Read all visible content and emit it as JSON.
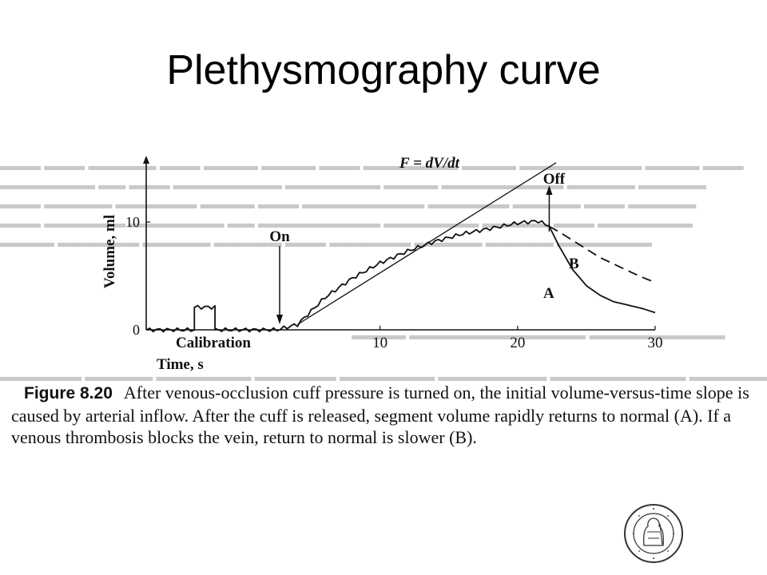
{
  "slide": {
    "title": "Plethysmography curve"
  },
  "figure": {
    "label": "Figure 8.20",
    "caption": "After venous-occlusion cuff pressure is turned on, the initial volume-versus-time slope is caused by arterial inflow. After the cuff is released, segment volume rapidly returns to normal (A). If a venous thrombosis blocks the vein, return to normal is slower (B).",
    "annotations": {
      "slope": "F = dV/dt",
      "on": "On",
      "off": "Off",
      "curve_a": "A",
      "curve_b": "B",
      "calibration": "Calibration"
    }
  },
  "seal": {
    "text": "UNIVERSITAS OSLOENSIS MDCCCXI"
  },
  "colors": {
    "ink": "#111111",
    "background": "#ffffff",
    "bleed": "#c9c9c9"
  },
  "chart_data": {
    "type": "line",
    "title": "",
    "xlabel": "Time, s",
    "ylabel": "Volume, ml",
    "xlim": [
      -7,
      30
    ],
    "ylim": [
      0,
      16
    ],
    "xticks": [
      10,
      20,
      30
    ],
    "yticks": [
      0,
      10
    ],
    "grid": false,
    "legend": "none",
    "series": [
      {
        "name": "A",
        "x": [
          -7,
          -3.5,
          -3.5,
          -2,
          -2,
          2.5,
          4,
          6,
          8,
          10,
          12,
          14,
          16,
          18,
          20,
          21.5,
          22.3,
          23,
          24,
          25,
          26,
          27,
          28,
          29,
          30
        ],
        "y": [
          0,
          0,
          2.1,
          2.1,
          0,
          0,
          0.5,
          3.0,
          4.8,
          6.2,
          7.3,
          8.2,
          8.9,
          9.4,
          9.9,
          10.1,
          9.6,
          7.8,
          5.6,
          4.1,
          3.2,
          2.6,
          2.3,
          2.0,
          1.6
        ]
      },
      {
        "name": "B",
        "x": [
          22.3,
          23,
          24,
          25,
          26,
          27,
          28,
          29,
          30
        ],
        "y": [
          9.6,
          9.1,
          8.3,
          7.5,
          6.7,
          6.1,
          5.5,
          4.9,
          4.4
        ]
      },
      {
        "name": "F = dV/dt",
        "x": [
          4,
          22.8
        ],
        "y": [
          0.5,
          15.5
        ]
      }
    ]
  }
}
